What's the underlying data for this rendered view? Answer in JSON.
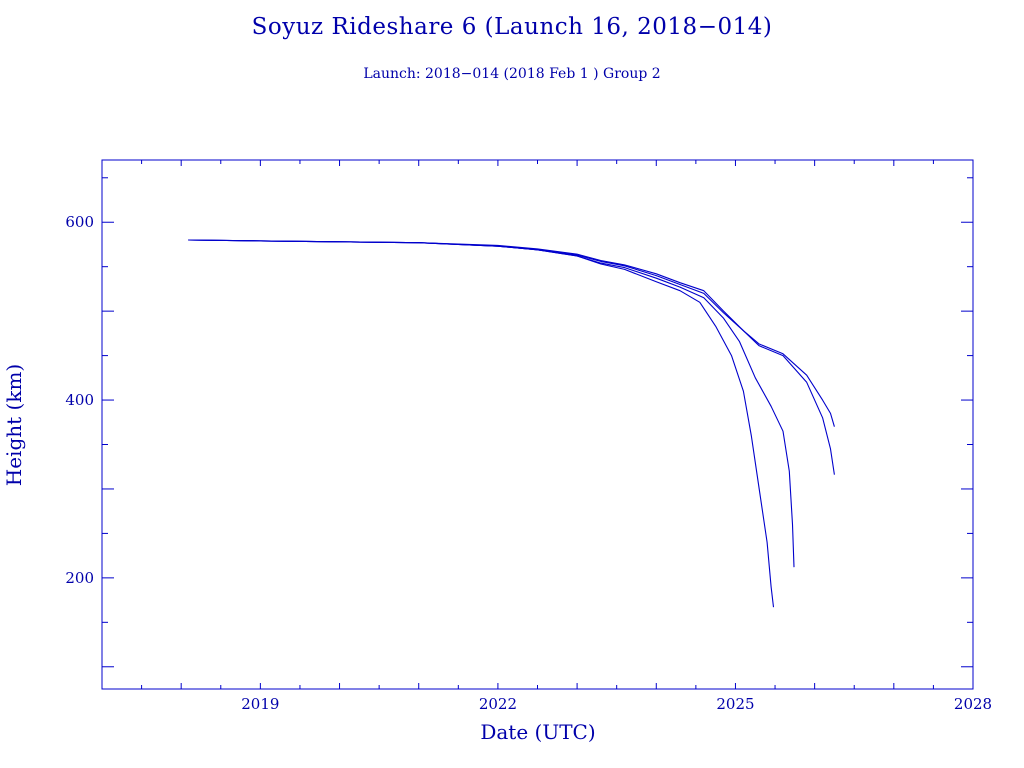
{
  "chart_data": {
    "type": "line",
    "title": "Soyuz Rideshare 6 (Launch 16, 2018−014)",
    "subtitle": "Launch: 2018−014  (2018 Feb  1 )  Group 2",
    "xlabel": "Date (UTC)",
    "ylabel": "Height (km)",
    "xlim": [
      2017.0,
      2028.0
    ],
    "ylim": [
      75,
      670
    ],
    "xticks": [
      2019,
      2022,
      2025,
      2028
    ],
    "yticks": [
      200,
      400,
      600
    ],
    "grid": false,
    "color": "#0000cc",
    "series": [
      {
        "x": [
          2018.09,
          2019.0,
          2020.0,
          2021.0,
          2022.0,
          2022.5,
          2023.0,
          2023.3,
          2023.6,
          2024.0,
          2024.3,
          2024.55,
          2024.75,
          2024.95,
          2025.1,
          2025.2,
          2025.3,
          2025.4,
          2025.45,
          2025.48
        ],
        "y": [
          580,
          579,
          578,
          577,
          573,
          569,
          562,
          553,
          547,
          533,
          523,
          510,
          483,
          450,
          410,
          360,
          300,
          240,
          190,
          167
        ]
      },
      {
        "x": [
          2018.09,
          2019.0,
          2020.0,
          2021.0,
          2022.0,
          2022.5,
          2023.0,
          2023.3,
          2023.6,
          2024.0,
          2024.3,
          2024.6,
          2024.85,
          2025.05,
          2025.25,
          2025.45,
          2025.6,
          2025.68,
          2025.72,
          2025.74
        ],
        "y": [
          580,
          579,
          578,
          577,
          573,
          569,
          562,
          554,
          549,
          537,
          527,
          515,
          492,
          466,
          425,
          393,
          365,
          320,
          260,
          212
        ]
      },
      {
        "x": [
          2018.09,
          2019.0,
          2020.0,
          2021.0,
          2022.0,
          2022.5,
          2023.0,
          2023.3,
          2023.6,
          2024.0,
          2024.3,
          2024.6,
          2024.85,
          2025.1,
          2025.3,
          2025.6,
          2025.9,
          2026.1,
          2026.2,
          2026.25
        ],
        "y": [
          580,
          579,
          578,
          577,
          573,
          569,
          563,
          556,
          551,
          540,
          530,
          520,
          498,
          478,
          461,
          450,
          420,
          380,
          345,
          316
        ]
      },
      {
        "x": [
          2018.09,
          2019.0,
          2020.0,
          2021.0,
          2022.0,
          2022.5,
          2023.0,
          2023.3,
          2023.6,
          2024.0,
          2024.3,
          2024.6,
          2024.85,
          2025.1,
          2025.3,
          2025.6,
          2025.9,
          2026.1,
          2026.2,
          2026.25
        ],
        "y": [
          580,
          579,
          578,
          577,
          574,
          570,
          564,
          557,
          552,
          542,
          532,
          523,
          500,
          478,
          463,
          452,
          428,
          400,
          385,
          370
        ]
      }
    ]
  }
}
